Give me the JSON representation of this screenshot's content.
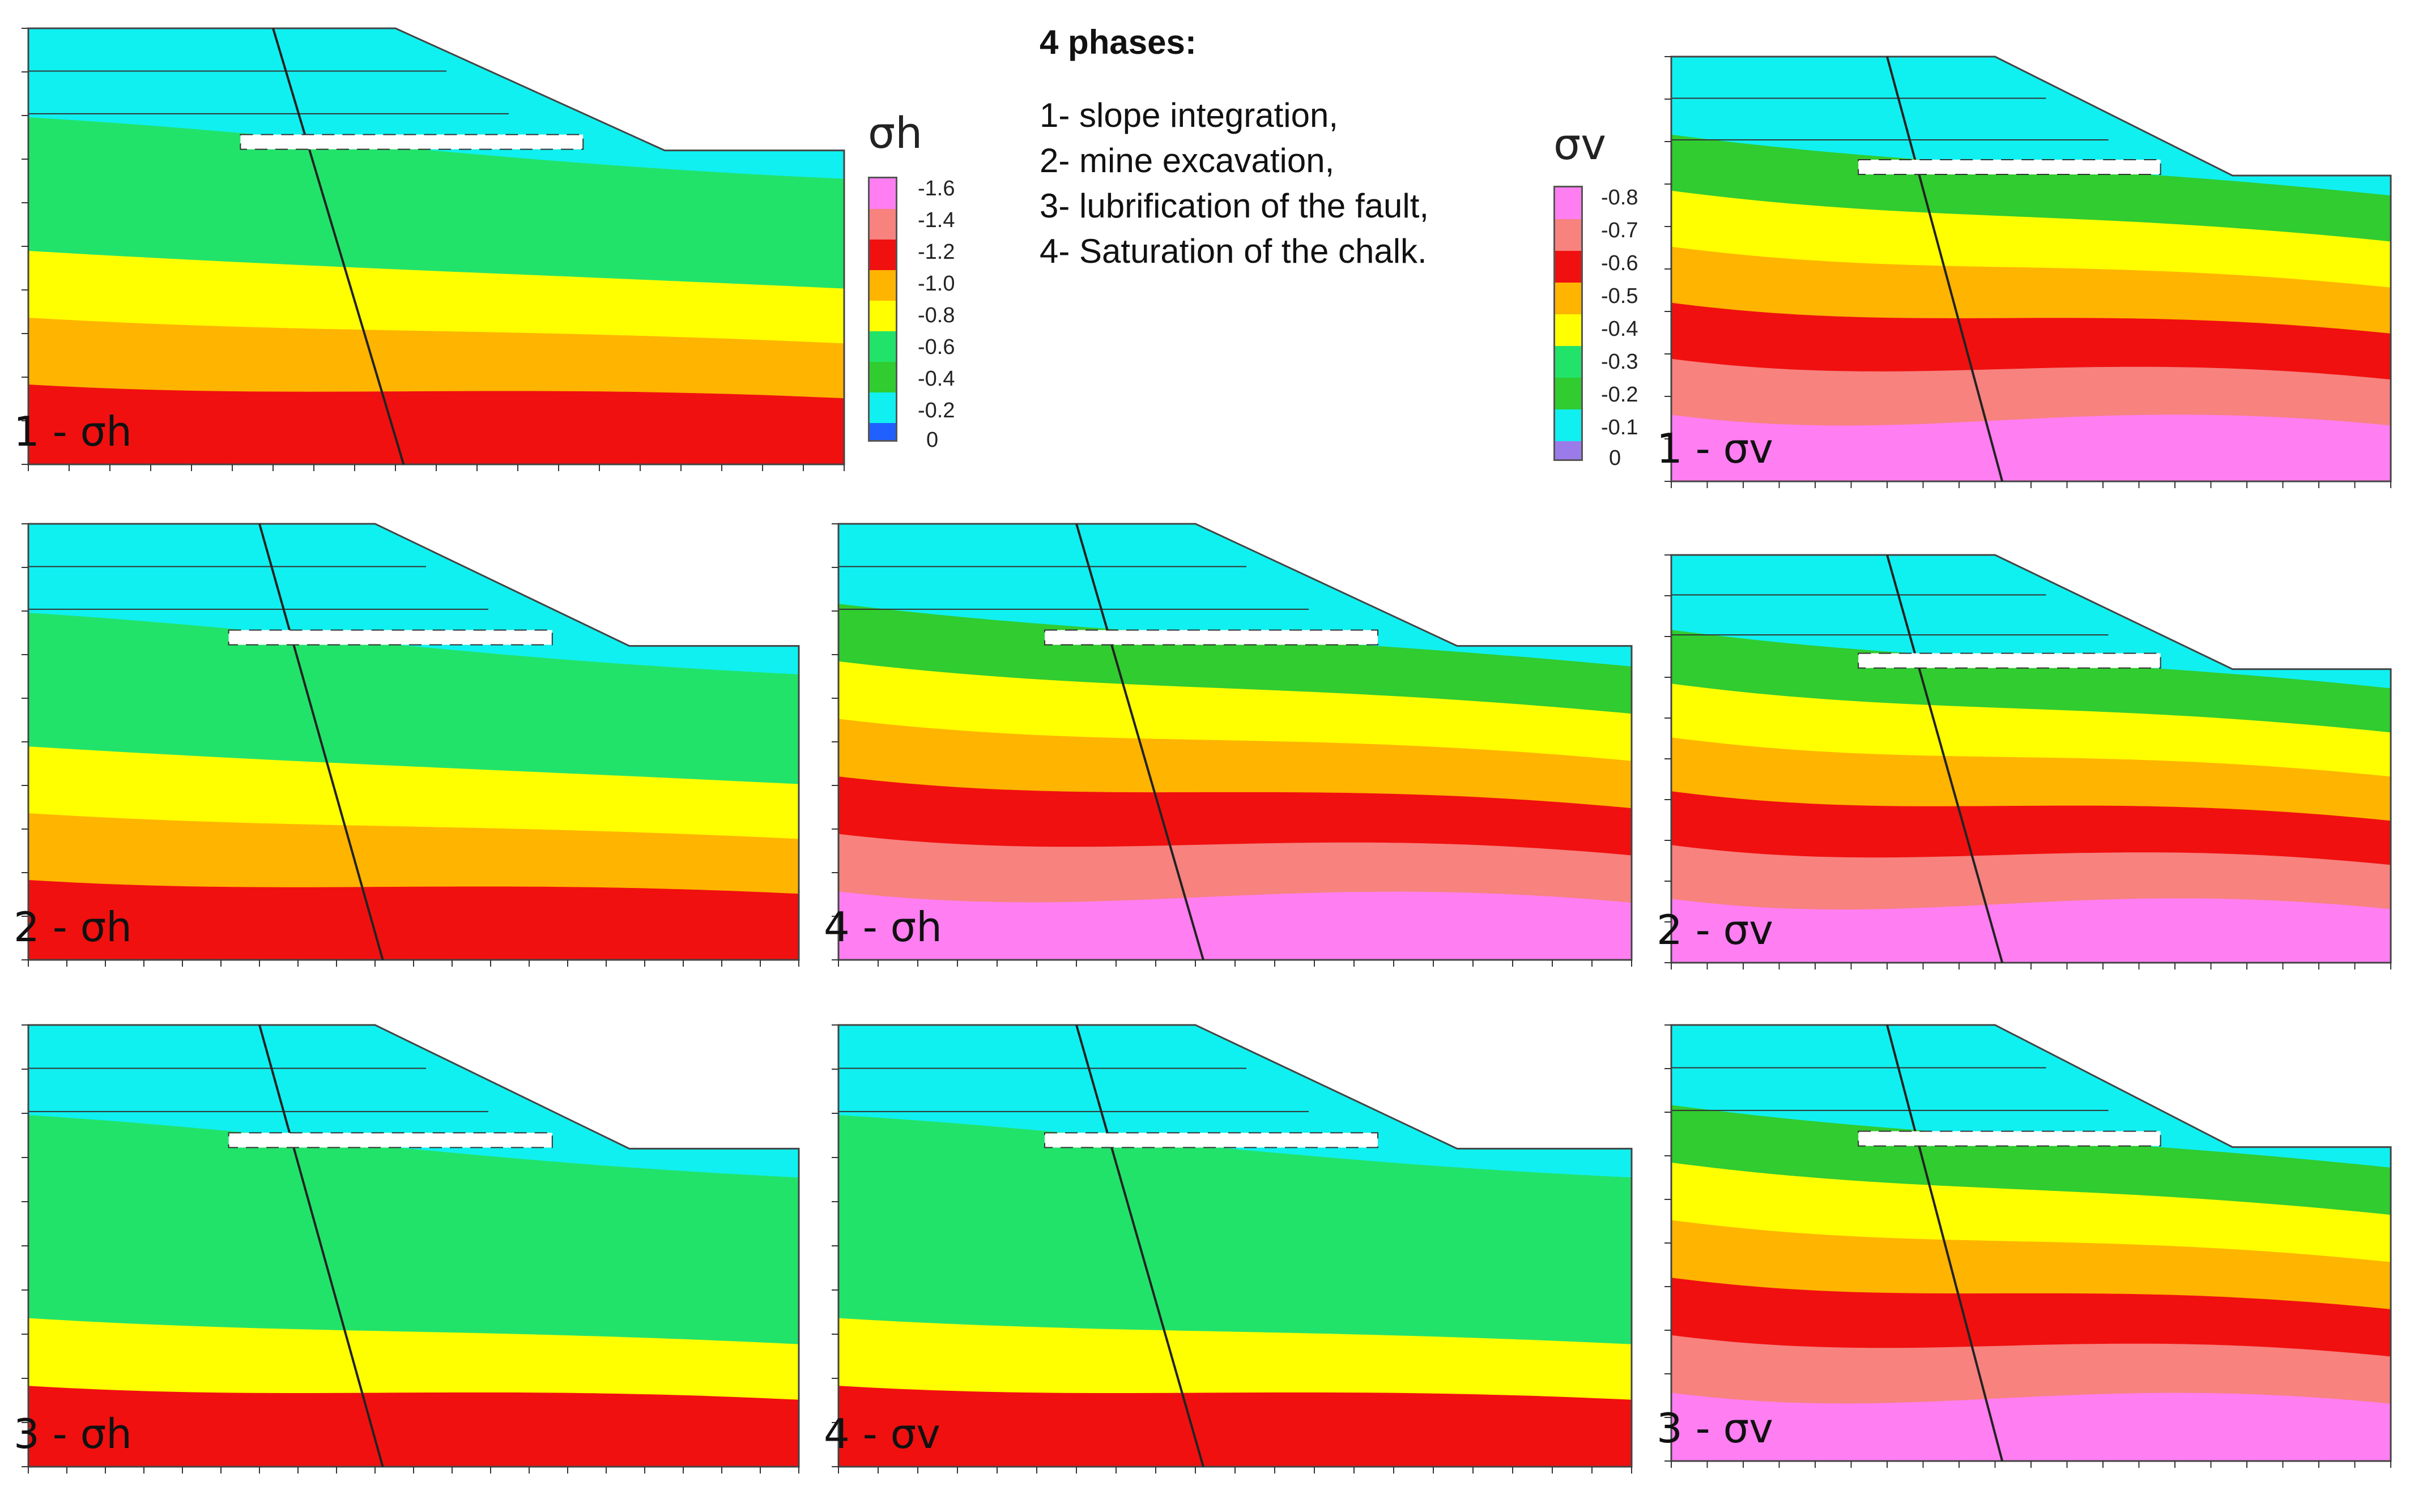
{
  "notes": {
    "title": "4 phases:",
    "items": [
      "1- slope integration,",
      "2- mine excavation,",
      "3- lubrification of the fault,",
      "4- Saturation of the chalk."
    ]
  },
  "legend_h": {
    "symbol": "σh",
    "ticks": [
      "-1.6",
      "-1.4",
      "-1.2",
      "-1.0",
      "-0.8",
      "-0.6",
      "-0.4",
      "-0.2",
      "0"
    ]
  },
  "legend_v": {
    "symbol": "σv",
    "ticks": [
      "-0.8",
      "-0.7",
      "-0.6",
      "-0.5",
      "-0.4",
      "-0.3",
      "-0.2",
      "-0.1",
      "0"
    ]
  },
  "palette": {
    "violet": "#9b7bea",
    "magenta": "#ff7ef2",
    "pink": "#f7827e",
    "red": "#f01010",
    "orange": "#ffb400",
    "yellow": "#ffff00",
    "lightgreen": "#22e36a",
    "green": "#30cc30",
    "cyan": "#10f0f0",
    "blue": "#2060ff"
  },
  "panels": [
    {
      "id": "1-sh",
      "label": "1 - σh"
    },
    {
      "id": "1-sv",
      "label": "1 - σv"
    },
    {
      "id": "2-sh",
      "label": "2 - σh"
    },
    {
      "id": "4-sh",
      "label": "4 - σh"
    },
    {
      "id": "2-sv",
      "label": "2 - σv"
    },
    {
      "id": "3-sh",
      "label": "3 - σh"
    },
    {
      "id": "4-sv",
      "label": "4 - σv"
    },
    {
      "id": "3-sv",
      "label": "3 - σv"
    }
  ]
}
